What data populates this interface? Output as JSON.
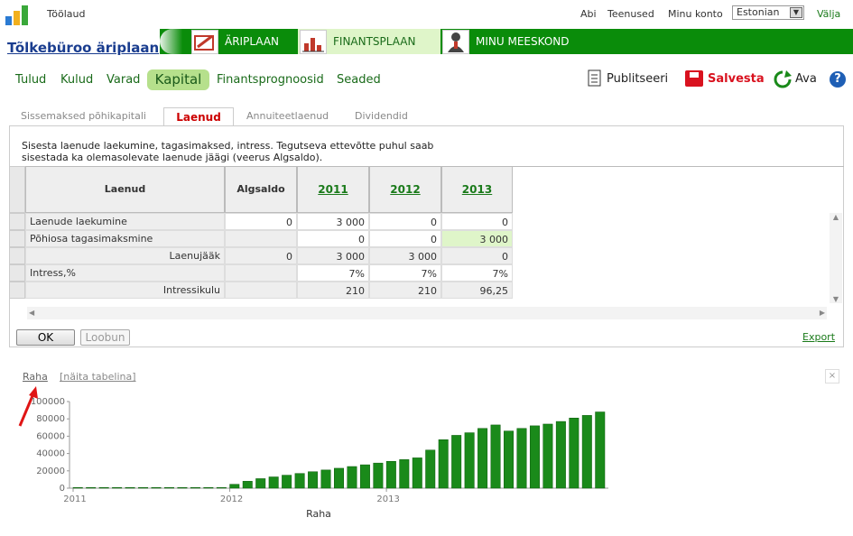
{
  "top": {
    "toolaud": "Töölaud",
    "links": [
      "Abi",
      "Teenused",
      "Minu konto"
    ],
    "language": "Estonian",
    "logout": "Välja"
  },
  "project_title": "Tõlkebüroo äriplaan",
  "band_tabs": [
    "ÄRIPLAAN",
    "FINANTSPLAAN",
    "MINU MEESKOND"
  ],
  "nav": {
    "items": [
      "Tulud",
      "Kulud",
      "Varad",
      "Kapital",
      "Finantsprognoosid",
      "Seaded"
    ],
    "active": "Kapital"
  },
  "actions": {
    "publish": "Publitseeri",
    "save": "Salvesta",
    "open": "Ava",
    "help": "?"
  },
  "subtabs": [
    "Sissemaksed põhikapitali",
    "Laenud",
    "Annuiteetlaenud",
    "Dividendid"
  ],
  "instructions": "Sisesta laenude laekumine, tagasimaksed, intress. Tegutseva ettevõtte puhul saab sisestada ka olemasolevate laenude jäägi (veerus Algsaldo).",
  "table": {
    "headers": [
      "Laenud",
      "Algsaldo",
      "2011",
      "2012",
      "2013"
    ],
    "rows": [
      {
        "label": "Laenude laekumine",
        "values": [
          "0",
          "3 000",
          "0",
          "0"
        ]
      },
      {
        "label": "Põhiosa tagasimaksmine",
        "values": [
          "",
          "0",
          "0",
          "3 000"
        ]
      },
      {
        "label": "Laenujääk",
        "values": [
          "0",
          "3 000",
          "3 000",
          "0"
        ]
      },
      {
        "label": "Intress,%",
        "values": [
          "",
          "7%",
          "7%",
          "7%"
        ]
      },
      {
        "label": "Intressikulu",
        "values": [
          "",
          "210",
          "210",
          "96,25"
        ]
      }
    ]
  },
  "buttons": {
    "ok": "OK",
    "cancel": "Loobun",
    "export": "Export"
  },
  "chart_section": {
    "raha_link": "Raha",
    "table_link": "[näita tabelina]",
    "close": "×"
  },
  "chart_data": {
    "type": "bar",
    "xlabel": "Raha",
    "ylim": [
      0,
      100000
    ],
    "yticks": [
      "0",
      "20000",
      "40000",
      "60000",
      "80000",
      "100000"
    ],
    "xticks": [
      "2011",
      "2012",
      "2013"
    ],
    "color": "#1a8a1a",
    "values": [
      800,
      800,
      800,
      800,
      800,
      800,
      800,
      800,
      800,
      800,
      800,
      800,
      4500,
      8000,
      11000,
      13000,
      15000,
      17000,
      19000,
      21000,
      23000,
      25000,
      27000,
      29000,
      31000,
      33000,
      35000,
      44000,
      56000,
      61000,
      64000,
      69000,
      73000,
      66000,
      69000,
      72000,
      74000,
      77000,
      81000,
      84000,
      88000
    ]
  }
}
